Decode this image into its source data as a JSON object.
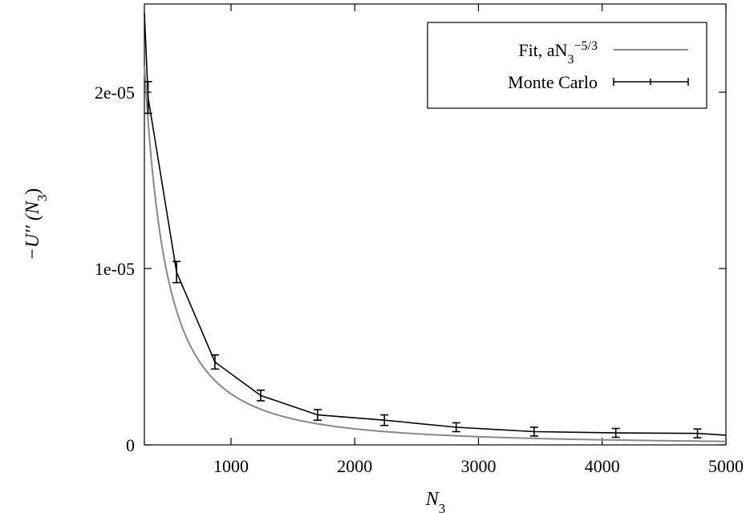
{
  "chart_data": {
    "type": "line",
    "title": "",
    "xlabel": "N",
    "xlabel_sub": "3",
    "ylabel": "−U′′ (N",
    "ylabel_sub": "3",
    "ylabel_close": ")",
    "xlim": [
      300,
      5000
    ],
    "ylim": [
      0,
      2.5e-05
    ],
    "xticks": [
      1000,
      2000,
      3000,
      4000,
      5000
    ],
    "xtick_labels": [
      "1000",
      "2000",
      "3000",
      "4000",
      "5000"
    ],
    "yticks": [
      0,
      1e-05,
      2e-05
    ],
    "ytick_labels": [
      "0",
      "1e-05",
      "2e-05"
    ],
    "grid": false,
    "legend_position": "top-right",
    "series": [
      {
        "name": "Fit, aN",
        "name_sub": "3",
        "name_sup": "−5/3",
        "kind": "fit",
        "color": "#888888",
        "function": "power",
        "coefficient": 0.2893,
        "exponent": -1.6667
      },
      {
        "name": "Monte Carlo",
        "kind": "errorbar",
        "color": "#000000",
        "points": [
          {
            "x": 300,
            "y": 2.45e-05
          },
          {
            "x": 330,
            "y": 1.97e-05,
            "err": 9e-07
          },
          {
            "x": 560,
            "y": 9.8e-06,
            "err": 6e-07
          },
          {
            "x": 870,
            "y": 4.7e-06,
            "err": 4e-07
          },
          {
            "x": 1240,
            "y": 2.8e-06,
            "err": 3e-07
          },
          {
            "x": 1700,
            "y": 1.7e-06,
            "err": 3e-07
          },
          {
            "x": 2240,
            "y": 1.4e-06,
            "err": 3e-07
          },
          {
            "x": 2820,
            "y": 1e-06,
            "err": 2.5e-07
          },
          {
            "x": 3450,
            "y": 7.5e-07,
            "err": 2.5e-07
          },
          {
            "x": 4110,
            "y": 6.8e-07,
            "err": 2.5e-07
          },
          {
            "x": 4770,
            "y": 6.5e-07,
            "err": 2.5e-07
          },
          {
            "x": 5000,
            "y": 5.5e-07
          }
        ]
      }
    ]
  }
}
